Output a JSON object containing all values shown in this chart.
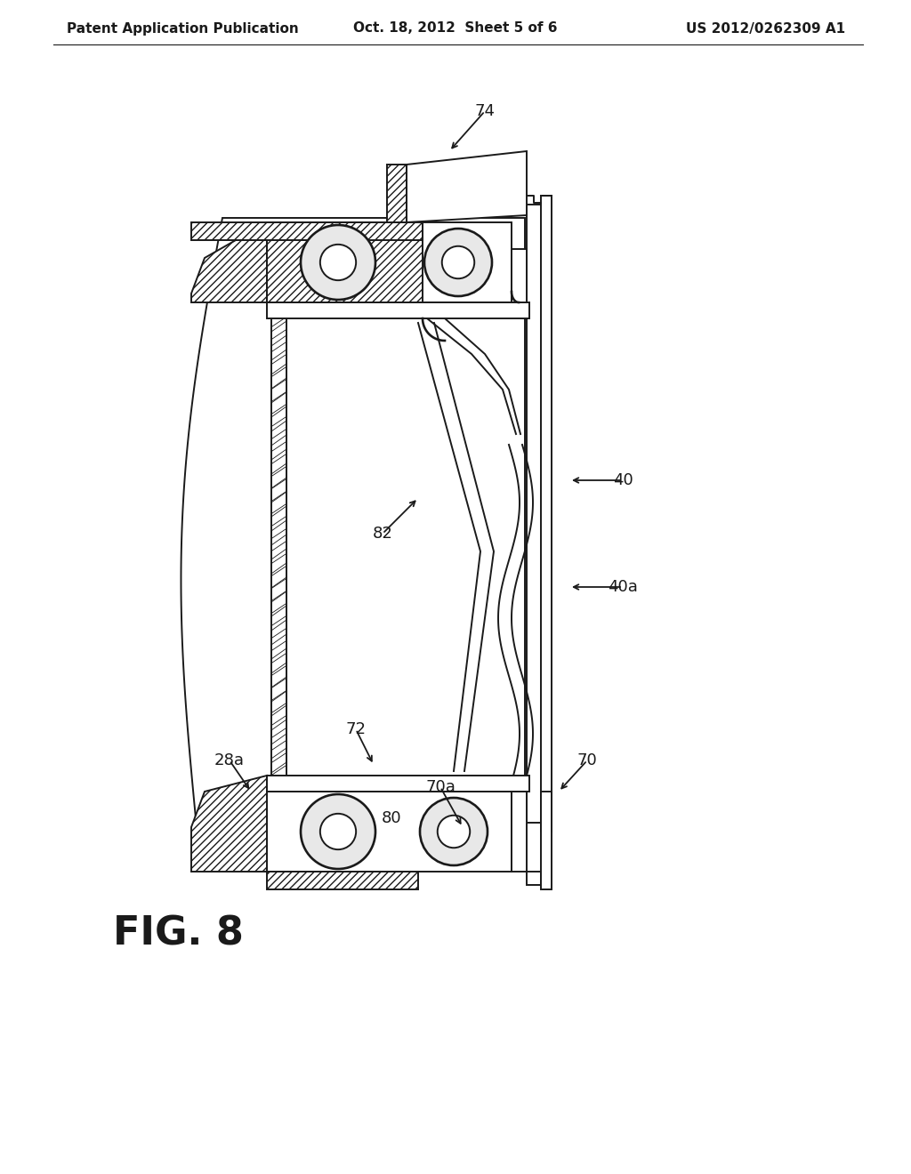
{
  "bg_color": "#ffffff",
  "lc": "#1a1a1a",
  "header_left": "Patent Application Publication",
  "header_center": "Oct. 18, 2012  Sheet 5 of 6",
  "header_right": "US 2012/0262309 A1",
  "fig_label": "FIG. 8"
}
